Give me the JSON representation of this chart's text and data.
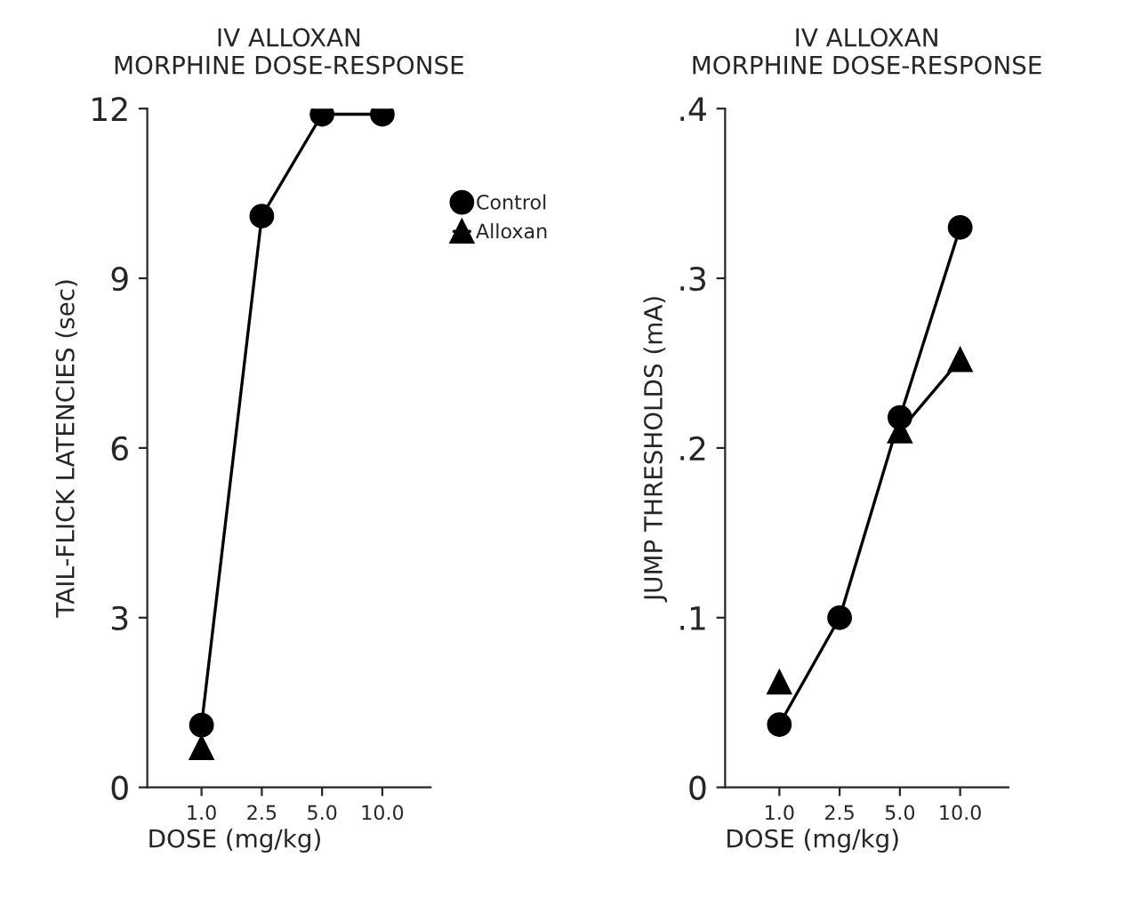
{
  "chart_data": [
    {
      "type": "line",
      "title": "IV ALLOXAN\nMORPHINE DOSE-RESPONSE",
      "xlabel": "DOSE (mg/kg)",
      "ylabel": "TAIL-FLICK LATENCIES (sec)",
      "categories": [
        "1.0",
        "2.5",
        "5.0",
        "10.0"
      ],
      "ylim": [
        0,
        12
      ],
      "yticks": [
        0,
        3,
        6,
        9,
        12
      ],
      "grid": false,
      "legend": "right",
      "series": [
        {
          "name": "Control",
          "color": "#000000",
          "marker": "circle",
          "values": [
            1.1,
            10.1,
            11.9,
            11.9
          ]
        },
        {
          "name": "Alloxan",
          "color": "#000000",
          "marker": "triangle",
          "values": [
            0.7,
            null,
            null,
            null
          ]
        }
      ]
    },
    {
      "type": "line",
      "title": "IV ALLOXAN\nMORPHINE DOSE-RESPONSE",
      "xlabel": "DOSE (mg/kg)",
      "ylabel": "JUMP THRESHOLDS (mA)",
      "categories": [
        "1.0",
        "2.5",
        "5.0",
        "10.0"
      ],
      "ylim": [
        0,
        0.4
      ],
      "yticks": [
        0,
        {
          "value": 0.1,
          "label": ".1"
        },
        {
          "value": 0.2,
          "label": ".2"
        },
        {
          "value": 0.3,
          "label": ".3"
        },
        {
          "value": 0.4,
          "label": ".4"
        }
      ],
      "grid": false,
      "legend": false,
      "series": [
        {
          "color": "#000000",
          "marker": "circle",
          "values": [
            0.037,
            0.1,
            0.218,
            0.33
          ]
        },
        {
          "color": "#000000",
          "marker": "triangle",
          "values": [
            0.062,
            null,
            0.21,
            0.252
          ]
        }
      ]
    }
  ]
}
